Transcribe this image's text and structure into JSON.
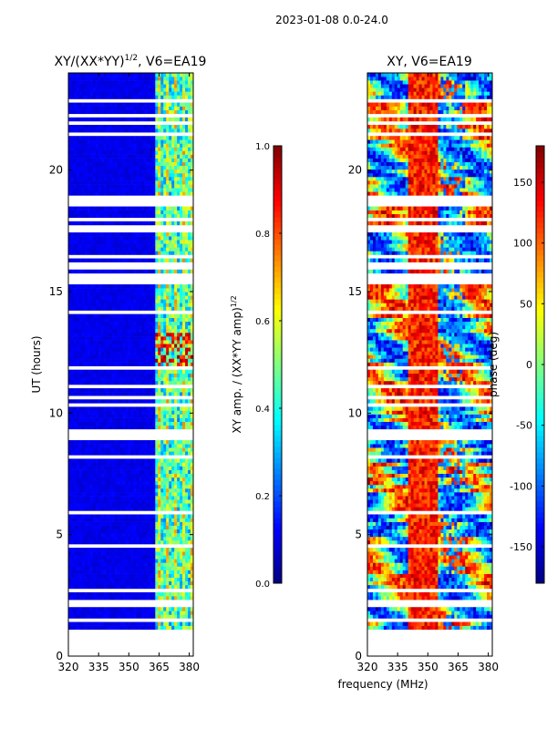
{
  "suptitle": "2023-01-08 0.0-24.0",
  "xlabel_shared": "frequency (MHz)",
  "colors": {
    "jet": [
      "#00007f",
      "#0000ff",
      "#007fff",
      "#00ffff",
      "#7fff7f",
      "#ffff00",
      "#ff7f00",
      "#ff0000",
      "#7f0000"
    ],
    "gap": "#ffffff"
  },
  "chart_data": [
    {
      "type": "heatmap",
      "title_main": "XY/(XX*YY)",
      "title_sup": "1/2",
      "title_tail": ", V6=EA19",
      "xlabel": "",
      "ylabel": "UT (hours)",
      "xlim": [
        320,
        382
      ],
      "ylim": [
        0,
        24
      ],
      "xticks": [
        "320",
        "335",
        "350",
        "365",
        "380"
      ],
      "yticks": [
        "0",
        "5",
        "10",
        "15",
        "20"
      ],
      "data_coverage_hours": [
        1.1,
        24.0
      ],
      "description": "amplitude mostly low (~0.1) below 362 MHz, higher (0.3-0.7) in channels 362-382 MHz",
      "colorbar": {
        "label": "XY amp. / (XX*YY amp)",
        "label_sup": "1/2",
        "range": [
          0.0,
          1.0
        ],
        "ticks": [
          "0.0",
          "0.2",
          "0.4",
          "0.6",
          "0.8",
          "1.0"
        ]
      }
    },
    {
      "type": "heatmap",
      "title_main": "XY, V6=EA19",
      "xlabel": "frequency (MHz)",
      "ylabel": "",
      "xlim": [
        320,
        382
      ],
      "ylim": [
        0,
        24
      ],
      "xticks": [
        "320",
        "335",
        "350",
        "365",
        "380"
      ],
      "yticks": [
        "0",
        "5",
        "10",
        "15",
        "20"
      ],
      "data_coverage_hours": [
        1.1,
        24.0
      ],
      "description": "phase varies widely across full range -180 to 180 deg",
      "colorbar": {
        "label": "phase (deg)",
        "range": [
          -180,
          180
        ],
        "ticks": [
          "-150",
          "-100",
          "-50",
          "0",
          "50",
          "100",
          "150"
        ]
      }
    }
  ]
}
